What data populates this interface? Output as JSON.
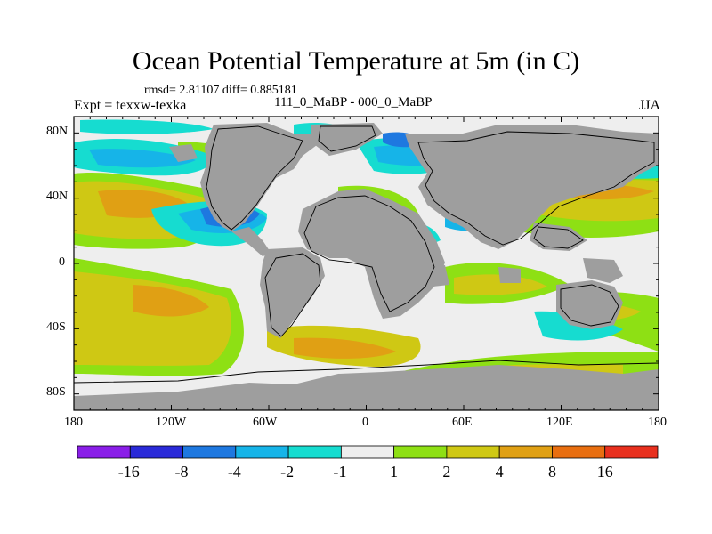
{
  "title": "Ocean Potential Temperature at 5m (in C)",
  "stats": "rmsd= 2.81107 diff= 0.885181",
  "experiment": "Expt = texxw-texka",
  "periods": "111_0_MaBP - 000_0_MaBP",
  "season": "JJA",
  "lat_labels": [
    "80N",
    "40N",
    "0",
    "40S",
    "80S"
  ],
  "lon_labels": [
    "180",
    "120W",
    "60W",
    "0",
    "60E",
    "120E",
    "180"
  ],
  "colorbar": {
    "labels": [
      "-16",
      "-8",
      "-4",
      "-2",
      "-1",
      "1",
      "2",
      "4",
      "8",
      "16"
    ],
    "colors": [
      "#8a1ee8",
      "#2a2ad8",
      "#1e78e0",
      "#16b4e8",
      "#16dcd0",
      "#eeeeee",
      "#8ee014",
      "#cfc814",
      "#e0a014",
      "#e86e10",
      "#e8301e"
    ]
  },
  "map_colors": {
    "land": "#9e9e9e",
    "neutral": "#eeeeee",
    "warm_light": "#8ee014",
    "warm_mid": "#cfc814",
    "warm_high": "#e0a014",
    "cool_light": "#16dcd0",
    "cool_mid": "#16b4e8",
    "cool_deep": "#1e78e0",
    "cool_max": "#2a2ad8"
  }
}
